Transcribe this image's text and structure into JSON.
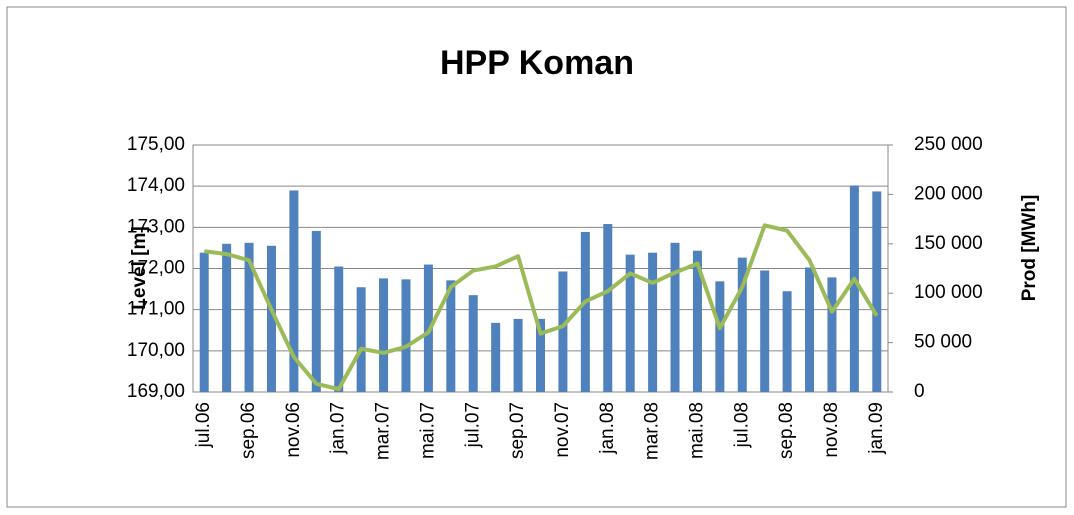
{
  "chart_data": {
    "type": "combo",
    "title": "HPP Koman",
    "categories": [
      "jul.06",
      null,
      "sep.06",
      null,
      "nov.06",
      null,
      "jan.07",
      null,
      "mar.07",
      null,
      "mai.07",
      null,
      "jul.07",
      null,
      "sep.07",
      null,
      "nov.07",
      null,
      "jan.08",
      null,
      "mar.08",
      null,
      "mai.08",
      null,
      "jul.08",
      null,
      "sep.08",
      null,
      "nov.08",
      null,
      "jan.09"
    ],
    "series": [
      {
        "type": "bar",
        "axis": "y2",
        "color": "#4f81bd",
        "values": [
          141000,
          150000,
          151000,
          148000,
          204000,
          163000,
          127000,
          106000,
          115000,
          114000,
          129000,
          113000,
          98000,
          70000,
          74000,
          74000,
          122000,
          162000,
          170000,
          139000,
          141000,
          151000,
          143000,
          112000,
          136000,
          123000,
          102000,
          126000,
          116000,
          209000,
          203000
        ]
      },
      {
        "type": "line",
        "axis": "y",
        "color": "#9bbb59",
        "values": [
          172.42,
          172.35,
          172.2,
          171.0,
          169.85,
          169.2,
          169.07,
          170.05,
          169.95,
          170.1,
          170.45,
          171.55,
          171.95,
          172.05,
          172.3,
          170.42,
          170.6,
          171.2,
          171.45,
          171.88,
          171.65,
          171.9,
          172.12,
          170.55,
          171.55,
          173.05,
          172.92,
          172.2,
          170.95,
          171.75,
          170.85
        ]
      }
    ],
    "y_label": "Level [m]",
    "y2_label": "Prod [MWh]",
    "ylim": [
      169,
      175
    ],
    "yticks": [
      {
        "value": 169,
        "label": "169,00"
      },
      {
        "value": 170,
        "label": "170,00"
      },
      {
        "value": 171,
        "label": "171,00"
      },
      {
        "value": 172,
        "label": "172,00"
      },
      {
        "value": 173,
        "label": "173,00"
      },
      {
        "value": 174,
        "label": "174,00"
      },
      {
        "value": 175,
        "label": "175,00"
      }
    ],
    "y2lim": [
      0,
      250000
    ],
    "y2ticks": [
      0,
      {
        "value": 50000,
        "label": "50 000"
      },
      {
        "value": 100000,
        "label": "100 000"
      },
      {
        "value": 150000,
        "label": "150 000"
      },
      {
        "value": 200000,
        "label": "200 000"
      },
      {
        "value": 250000,
        "label": "250 000"
      }
    ],
    "grid": true
  }
}
